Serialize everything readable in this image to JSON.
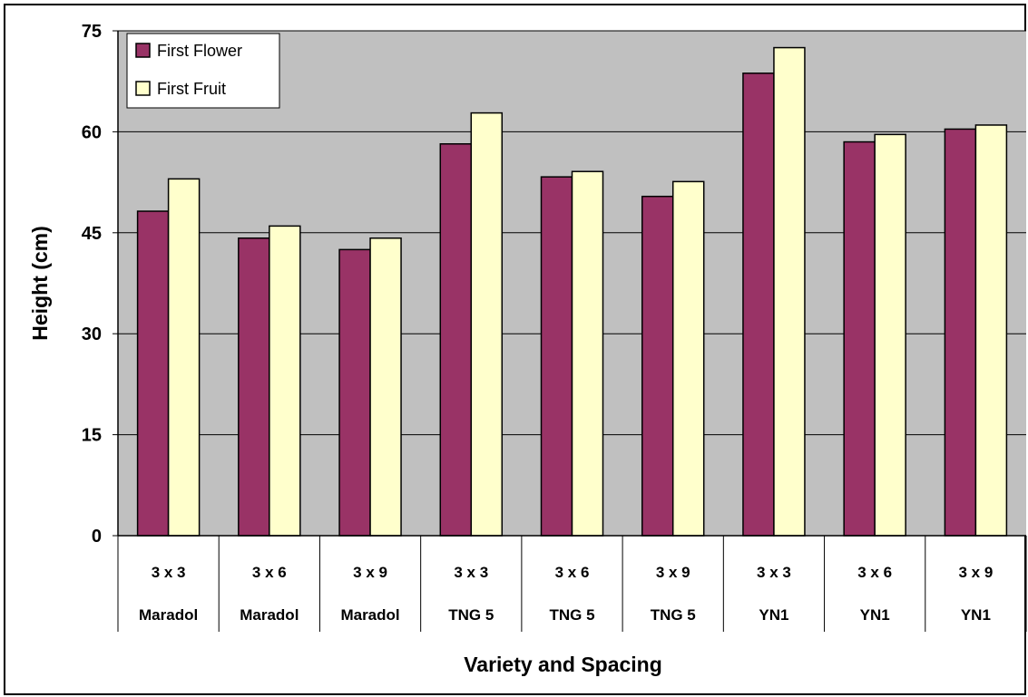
{
  "chart_data": {
    "type": "bar",
    "title": "",
    "xlabel": "Variety and Spacing",
    "ylabel": "Height (cm)",
    "ylim": [
      0,
      75
    ],
    "yticks": [
      "0",
      "15",
      "30",
      "45",
      "60",
      "75"
    ],
    "grid": true,
    "legend_position": "top-left",
    "categories": [
      {
        "spacing": "3 x 3",
        "variety": "Maradol"
      },
      {
        "spacing": "3 x 6",
        "variety": "Maradol"
      },
      {
        "spacing": "3 x 9",
        "variety": "Maradol"
      },
      {
        "spacing": "3 x 3",
        "variety": "TNG 5"
      },
      {
        "spacing": "3 x 6",
        "variety": "TNG 5"
      },
      {
        "spacing": "3 x 9",
        "variety": "TNG 5"
      },
      {
        "spacing": "3 x 3",
        "variety": "YN1"
      },
      {
        "spacing": "3 x 6",
        "variety": "YN1"
      },
      {
        "spacing": "3 x 9",
        "variety": "YN1"
      }
    ],
    "series": [
      {
        "name": "First Flower",
        "color": "#993366",
        "values": [
          48.2,
          44.2,
          42.5,
          58.2,
          53.3,
          50.4,
          68.7,
          58.5,
          60.4
        ]
      },
      {
        "name": "First Fruit",
        "color": "#FFFFCC",
        "values": [
          53.0,
          46.0,
          44.2,
          62.8,
          54.1,
          52.6,
          72.5,
          59.6,
          61.0
        ]
      }
    ],
    "plot_background": "#C0C0C0"
  }
}
